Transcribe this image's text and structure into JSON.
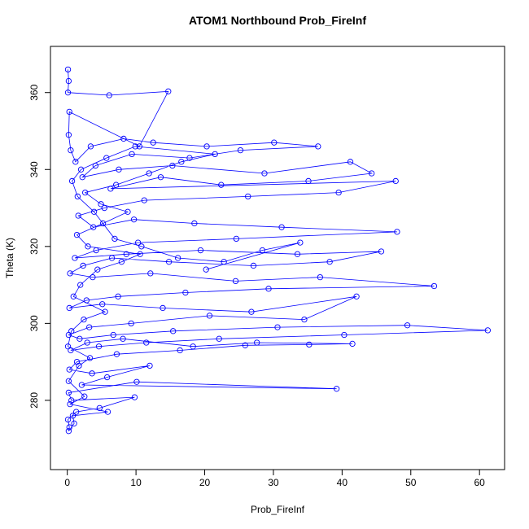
{
  "chart_data": {
    "type": "scatter",
    "lines": true,
    "title": "ATOM1 Northbound Prob_FireInf",
    "x_label": "Prob_FireInf",
    "y_label": "Theta (K)",
    "color": "#0000ff",
    "xlim": [
      -2.45,
      63.65
    ],
    "ylim": [
      262,
      372
    ],
    "xticks": [
      0,
      10,
      20,
      30,
      40,
      50,
      60
    ],
    "yticks": [
      280,
      300,
      320,
      340,
      360
    ],
    "x": [
      0.1,
      0.2,
      0.1,
      6.1,
      14.7,
      10.5,
      0.3,
      0.2,
      0.5,
      1.2,
      3.4,
      8.2,
      12.5,
      20.3,
      30.1,
      36.5,
      25.2,
      17.8,
      9.4,
      4.1,
      2.2,
      7.5,
      15.3,
      28.7,
      41.2,
      44.3,
      35.1,
      22.4,
      13.6,
      6.3,
      47.8,
      39.5,
      26.3,
      11.2,
      5.4,
      1.6,
      3.8,
      9.7,
      18.5,
      31.2,
      48.0,
      24.6,
      10.3,
      4.2,
      1.1,
      8.6,
      19.4,
      33.5,
      45.7,
      38.2,
      27.1,
      14.8,
      6.5,
      2.3,
      0.4,
      3.7,
      12.1,
      24.5,
      36.8,
      53.4,
      29.3,
      17.2,
      7.4,
      2.8,
      0.3,
      5.1,
      13.9,
      26.8,
      42.1,
      34.5,
      20.7,
      9.3,
      3.2,
      0.2,
      1.8,
      6.7,
      15.4,
      30.6,
      49.5,
      61.2,
      40.3,
      22.1,
      11.5,
      4.6,
      0.5,
      2.9,
      8.1,
      18.3,
      27.6,
      41.5,
      35.2,
      25.9,
      16.4,
      7.2,
      1.4,
      0.3,
      3.6,
      12.0,
      5.8,
      2.1,
      39.2,
      10.1,
      0.2,
      0.6,
      9.8,
      4.7,
      1.3,
      0.1,
      0.3,
      0.2,
      1.0,
      0.8,
      5.9,
      0.4,
      2.5,
      0.2,
      1.7,
      3.3,
      0.1,
      0.6,
      2.4,
      5.5,
      0.9,
      1.9,
      4.4,
      7.9,
      10.6,
      3.0,
      1.4,
      5.2,
      8.8,
      4.9,
      2.6,
      7.1,
      11.9,
      16.6,
      21.5,
      9.9,
      5.7,
      2.0,
      0.7,
      1.5,
      3.9,
      6.9,
      10.8,
      16.1,
      22.8,
      28.4,
      33.9,
      20.2
    ],
    "values": [
      366,
      363,
      360,
      359.3,
      360.3,
      346,
      355,
      349,
      345,
      342,
      346,
      348,
      347,
      346,
      347,
      346,
      345,
      343,
      344,
      341,
      338,
      340,
      341,
      339,
      342,
      339,
      337,
      336,
      338,
      335,
      337,
      334,
      333,
      332,
      330,
      328,
      325,
      327,
      326,
      325,
      323.8,
      322,
      321,
      319,
      317,
      318,
      319,
      318,
      318.7,
      316,
      315,
      316,
      317,
      315,
      313,
      312,
      313,
      311,
      312,
      309.7,
      309,
      308,
      307,
      306,
      304,
      305,
      304,
      303,
      307,
      301,
      302,
      300,
      299,
      297,
      296,
      297,
      298,
      299,
      299.5,
      298.2,
      297,
      296,
      295,
      294,
      293,
      295,
      296,
      294,
      295,
      294.7,
      294.5,
      294.3,
      293,
      292,
      290,
      288,
      287,
      289,
      286,
      284,
      283,
      284.8,
      282,
      280,
      280.8,
      278,
      277,
      275,
      273,
      272,
      274,
      276,
      277,
      279,
      281,
      285,
      289,
      291,
      294,
      298,
      301,
      303,
      307,
      310,
      314,
      316,
      318,
      320,
      323,
      326,
      329,
      331,
      334,
      336,
      339,
      342,
      344,
      346,
      343,
      340,
      337,
      333,
      329,
      322,
      320,
      317,
      316,
      319,
      321,
      314
    ]
  }
}
